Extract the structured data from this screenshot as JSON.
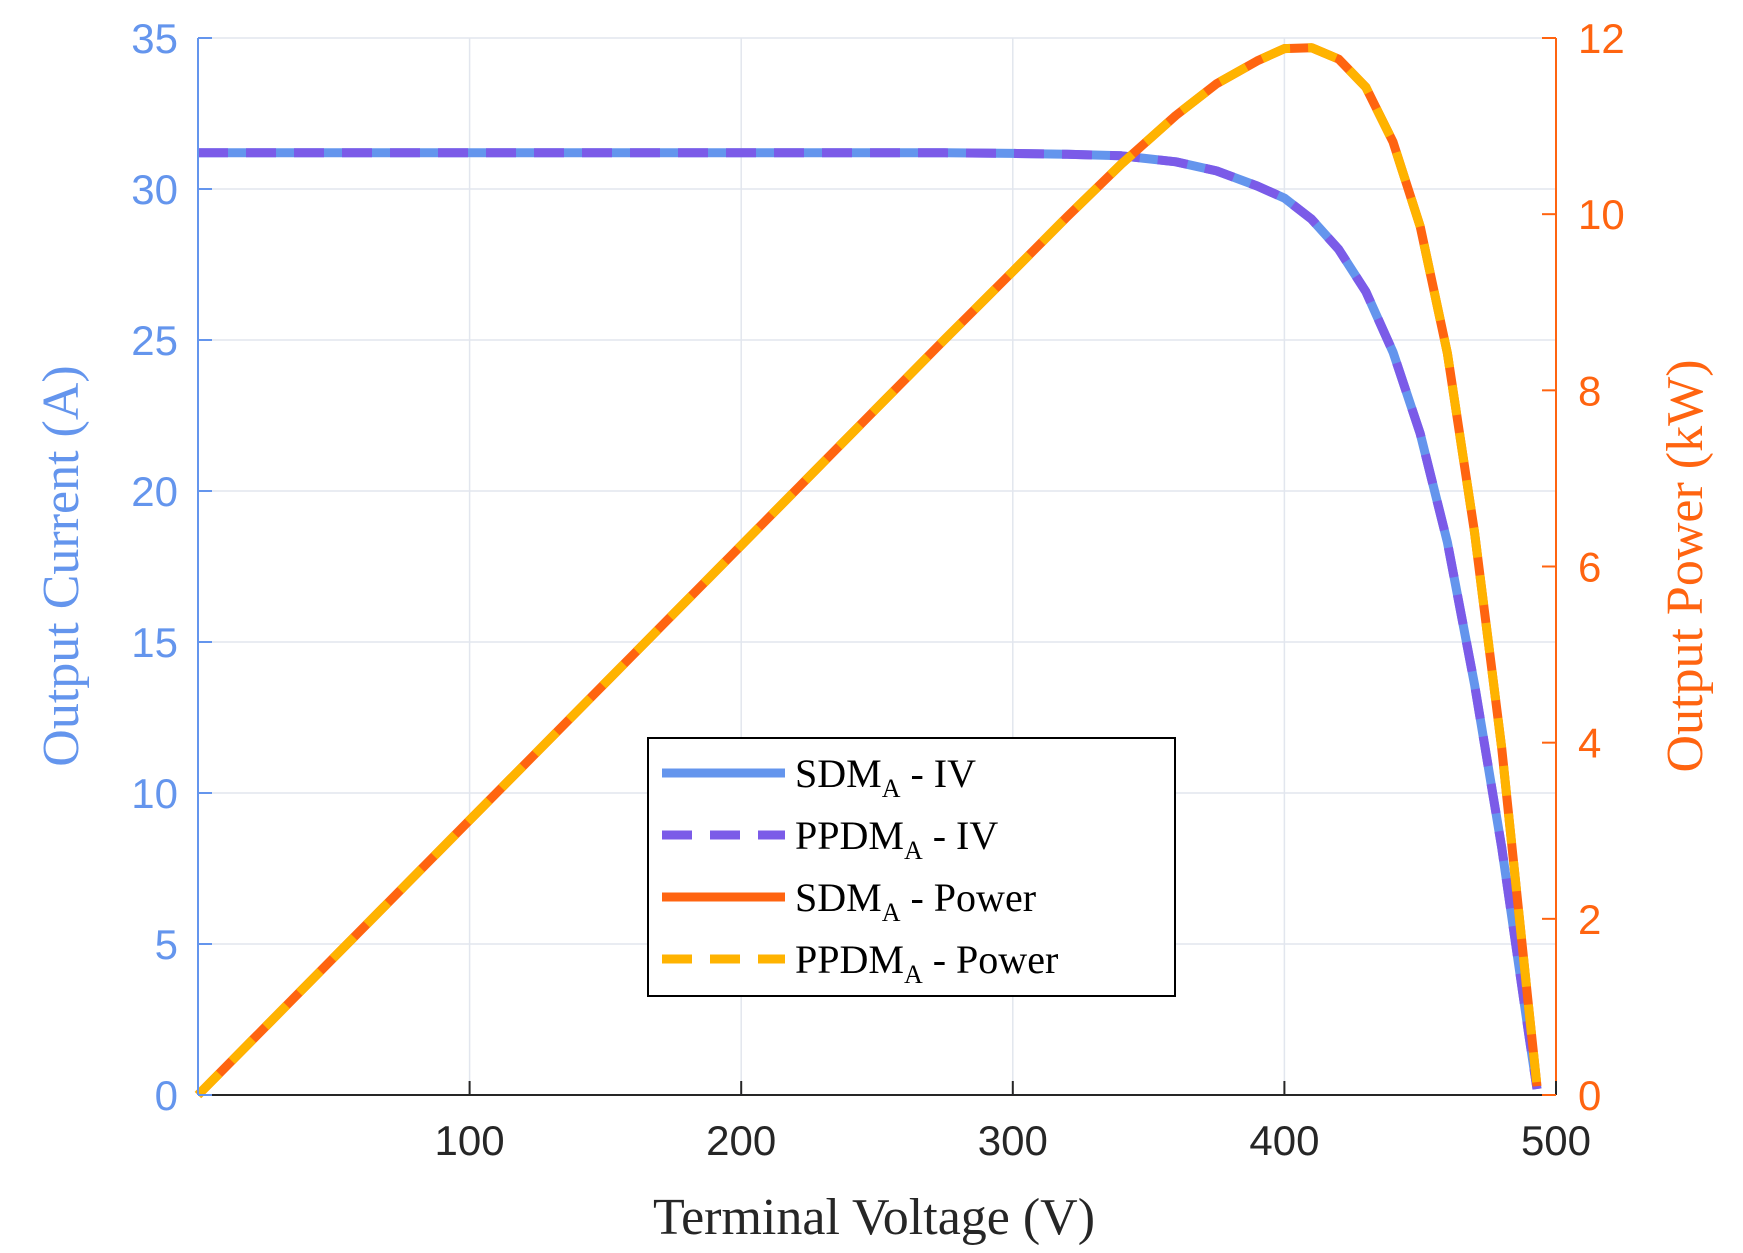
{
  "chart_data": {
    "type": "line",
    "x": [
      0,
      25,
      50,
      75,
      100,
      125,
      150,
      175,
      200,
      225,
      250,
      275,
      300,
      320,
      340,
      360,
      375,
      390,
      400,
      410,
      420,
      430,
      440,
      450,
      460,
      470,
      480,
      490,
      493
    ],
    "series": [
      {
        "name": "SDM",
        "subscript": "A",
        "suffix": " - IV",
        "axis": "left",
        "style": "solid",
        "color": "#6495ED",
        "values": [
          31.2,
          31.2,
          31.2,
          31.2,
          31.2,
          31.2,
          31.2,
          31.2,
          31.2,
          31.2,
          31.2,
          31.2,
          31.18,
          31.15,
          31.1,
          30.9,
          30.6,
          30.1,
          29.7,
          29.0,
          28.0,
          26.6,
          24.6,
          21.9,
          18.3,
          13.6,
          8.2,
          2.0,
          0.2
        ]
      },
      {
        "name": "PPDM",
        "subscript": "A",
        "suffix": " - IV",
        "axis": "left",
        "style": "dashed",
        "color": "#7B5BE8",
        "values": [
          31.2,
          31.2,
          31.2,
          31.2,
          31.2,
          31.2,
          31.2,
          31.2,
          31.2,
          31.2,
          31.2,
          31.2,
          31.18,
          31.15,
          31.1,
          30.9,
          30.6,
          30.1,
          29.7,
          29.0,
          28.0,
          26.6,
          24.6,
          21.9,
          18.3,
          13.6,
          8.2,
          2.0,
          0.2
        ]
      },
      {
        "name": "SDM",
        "subscript": "A",
        "suffix": " - Power",
        "axis": "right",
        "style": "solid",
        "color": "#FF6410",
        "values": [
          0,
          0.78,
          1.56,
          2.34,
          3.12,
          3.9,
          4.68,
          5.46,
          6.24,
          7.02,
          7.8,
          8.58,
          9.35,
          9.97,
          10.57,
          11.12,
          11.48,
          11.74,
          11.88,
          11.89,
          11.76,
          11.44,
          10.82,
          9.86,
          8.42,
          6.39,
          3.94,
          0.98,
          0.1
        ]
      },
      {
        "name": "PPDM",
        "subscript": "A",
        "suffix": " - Power",
        "axis": "right",
        "style": "dashed",
        "color": "#FFB300",
        "values": [
          0,
          0.78,
          1.56,
          2.34,
          3.12,
          3.9,
          4.68,
          5.46,
          6.24,
          7.02,
          7.8,
          8.58,
          9.35,
          9.97,
          10.57,
          11.12,
          11.48,
          11.74,
          11.88,
          11.89,
          11.76,
          11.44,
          10.82,
          9.86,
          8.42,
          6.39,
          3.94,
          0.98,
          0.1
        ]
      }
    ],
    "xlabel": "Terminal Voltage (V)",
    "ylabel": "Output Current (A)",
    "y2label": "Output Power (kW)",
    "xlim": [
      0,
      500
    ],
    "ylim": [
      0,
      35
    ],
    "y2lim": [
      0,
      12
    ],
    "xticks": [
      100,
      200,
      300,
      400,
      500
    ],
    "yticks": [
      0,
      5,
      10,
      15,
      20,
      25,
      30,
      35
    ],
    "y2ticks": [
      0,
      2,
      4,
      6,
      8,
      10,
      12
    ],
    "grid": true,
    "legend_position": "bottom-center",
    "colors": {
      "left_axis": "#6495ED",
      "right_axis": "#FF6410",
      "grid": "#E2E6EE",
      "text": "#262626"
    }
  }
}
